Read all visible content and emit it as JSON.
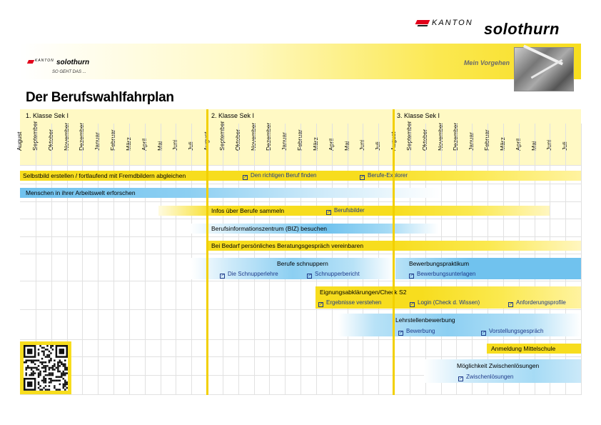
{
  "header": {
    "logo_kanton": "KANTON",
    "logo_name": "solothurn",
    "small_logo_kanton": "KANTON",
    "small_logo_name": "solothurn",
    "small_logo_tagline": "SO GEHT DAS ...",
    "band_label": "Mein Vorgehen"
  },
  "title": "Der Berufswahlfahrplan",
  "years": [
    "1. Klasse Sek I",
    "2. Klasse Sek I",
    "3. Klasse Sek I"
  ],
  "months": [
    "August",
    "September",
    "Oktober",
    "November",
    "Dezember",
    "Januar",
    "Februar",
    "März",
    "April",
    "Mai",
    "Juni",
    "Juli"
  ],
  "rows": {
    "r1": {
      "text": "Selbstbild erstellen / fortlaufend mit Fremdbildern abgleichen",
      "link1": "Den richtigen Beruf finden",
      "link2": "Berufe-Explorer"
    },
    "r2": {
      "text": "Menschen in ihrer Arbeitswelt erforschen"
    },
    "r3": {
      "text": "Infos über Berufe sammeln",
      "link1": "Berufsbilder"
    },
    "r4": {
      "text": "Berufsinformationszentrum (BIZ) besuchen"
    },
    "r5": {
      "text": "Bei Bedarf persönliches Beratungsgespräch vereinbaren"
    },
    "r6": {
      "text": "Berufe schnuppern",
      "link1": "Die Schnupperlehre",
      "link2": "Schnupperbericht"
    },
    "r6b": {
      "text": "Bewerbungspraktikum",
      "link1": "Bewerbungsunterlagen"
    },
    "r7": {
      "text": "Eignungsabklärungen/Check S2",
      "link1": "Ergebnisse verstehen",
      "link2": "Login (Check d. Wissen)",
      "link3": "Anforderungsprofile"
    },
    "r8": {
      "text": "Lehrstellenbewerbung",
      "link1": "Bewerbung",
      "link2": "Vorstellungsgespräch"
    },
    "r9": {
      "text": "Anmeldung Mittelschule"
    },
    "r10": {
      "text": "Möglichkeit Zwischenlösungen",
      "link1": "Zwischenlösungen"
    }
  },
  "colors": {
    "yellow": "#f7dd1e",
    "light_yellow": "#fff9c4",
    "blue": "#70c2ee",
    "link": "#1e3a8a"
  }
}
